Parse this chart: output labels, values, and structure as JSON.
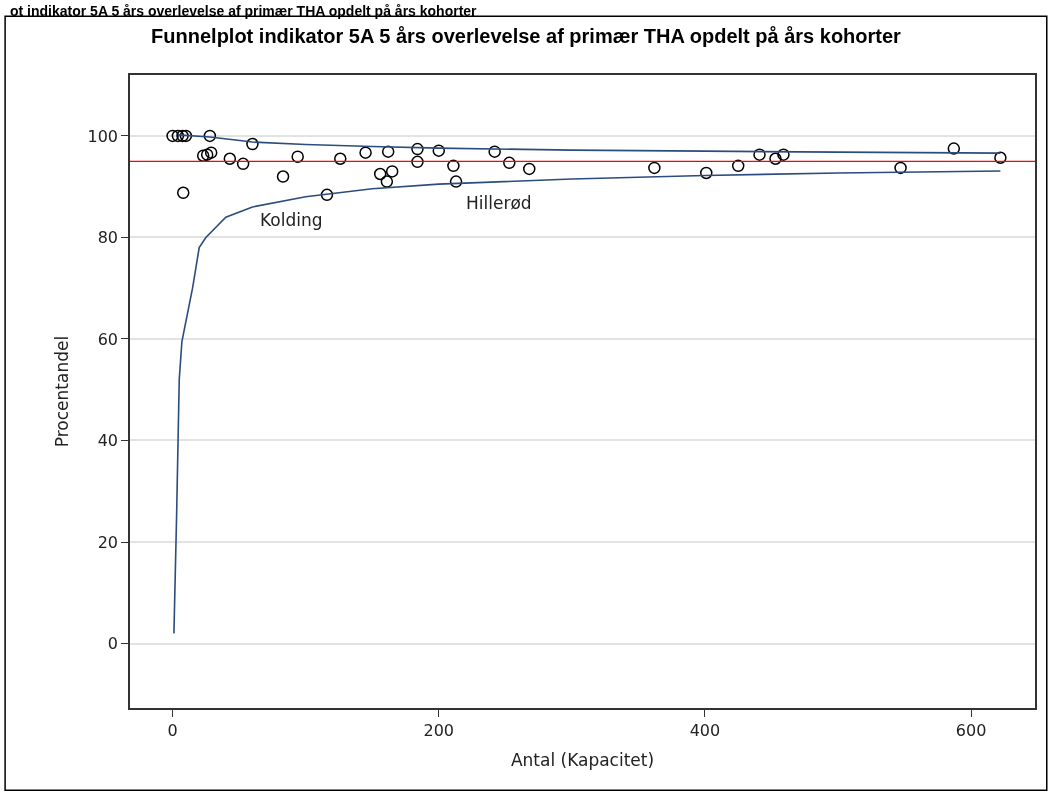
{
  "chart_data": {
    "type": "scatter",
    "title": "Funnelplot indikator 5A 5 års overlevelse af primær THA opdelt på års kohorter",
    "xlabel": "Antal (Kapacitet)",
    "ylabel": "Procentandel",
    "xlim": [
      -32,
      648
    ],
    "xticks": [
      0,
      200,
      400,
      600
    ],
    "ylim": [
      -12.7,
      112
    ],
    "yticks": [
      0,
      20,
      40,
      60,
      80,
      100
    ],
    "grid": "y",
    "series": [
      {
        "marker": "circle",
        "color": "#000000",
        "x": [
          0,
          4,
          7.5,
          10,
          28,
          8,
          23,
          26,
          29,
          43,
          53,
          60,
          83,
          94,
          116,
          126,
          145,
          156,
          162,
          161,
          165,
          184,
          184,
          200,
          211,
          213,
          242,
          253,
          268,
          362,
          401,
          425,
          441,
          453,
          459,
          547,
          587,
          622
        ],
        "values": [
          100,
          100,
          100,
          100,
          100,
          88.8,
          96.1,
          96.3,
          96.7,
          95.5,
          94.5,
          98.4,
          92,
          95.9,
          88.4,
          95.5,
          96.7,
          92.5,
          96.9,
          91,
          93,
          97.4,
          94.9,
          97.1,
          94.1,
          91,
          96.9,
          94.7,
          93.5,
          93.7,
          92.7,
          94.1,
          96.3,
          95.5,
          96.3,
          93.7,
          97.5,
          95.7
        ]
      },
      {
        "type": "line",
        "color": "#2b4c7e",
        "line_style": "solid",
        "x": [
          4,
          28,
          60,
          100,
          150,
          200,
          300,
          400,
          500,
          622
        ],
        "values": [
          100.2,
          99.8,
          98.8,
          98.3,
          97.9,
          97.6,
          97.2,
          97,
          96.8,
          96.6
        ]
      },
      {
        "type": "line",
        "color": "#2b4c7e",
        "line_style": "solid",
        "x": [
          1,
          3,
          5,
          7,
          15,
          20,
          25,
          40,
          60,
          100,
          150,
          200,
          300,
          400,
          500,
          622
        ],
        "values": [
          2,
          25,
          52,
          59.5,
          70,
          78,
          80,
          84,
          86,
          88,
          89.6,
          90.5,
          91.5,
          92.2,
          92.7,
          93.1
        ]
      }
    ],
    "ref_lines": [
      {
        "axis": "y",
        "value": 95,
        "color": "#ff0000",
        "line_style": "solid"
      }
    ],
    "annotations": [
      "ot indikator 5A 5 års overlevelse af primær THA opdelt på års kohorter",
      "Kolding",
      "Hillerød"
    ]
  }
}
